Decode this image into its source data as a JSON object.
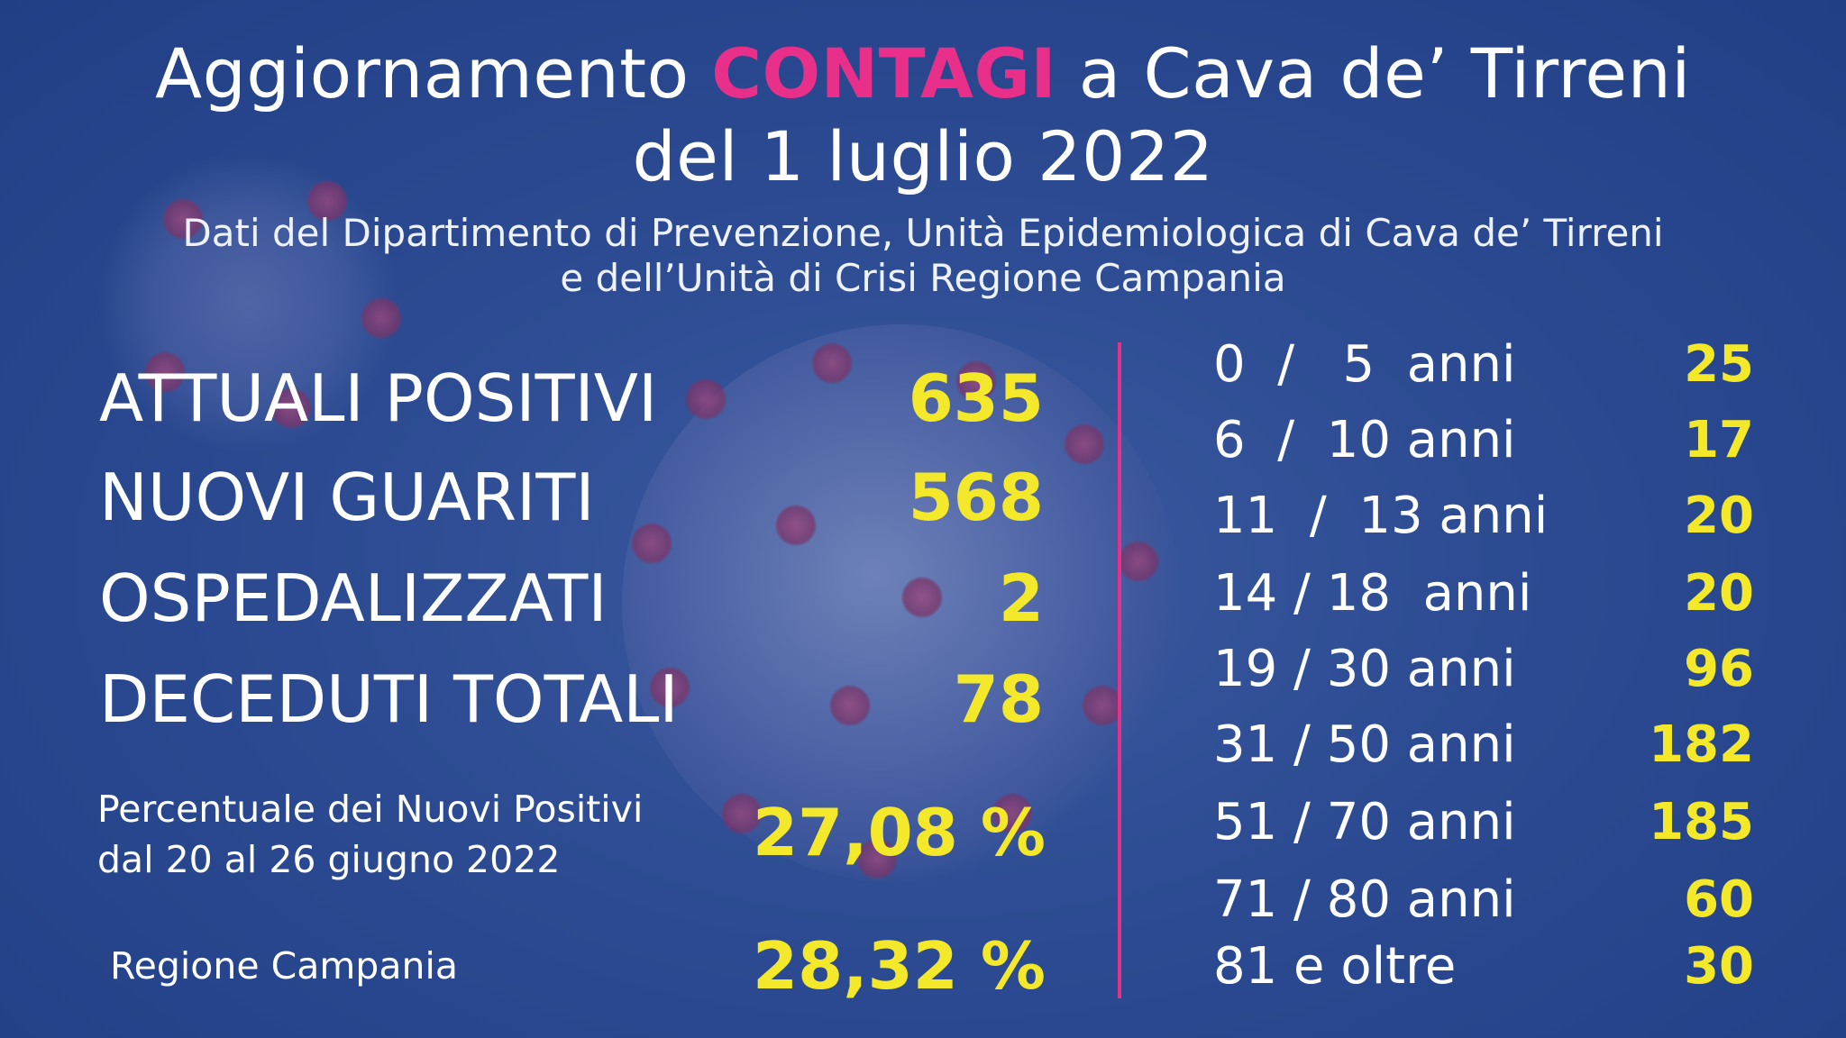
{
  "header": {
    "title_prefix": "Aggiornamento ",
    "title_accent": "CONTAGI",
    "title_suffix": " a Cava de’ Tirreni",
    "title_line2": "del 1 luglio 2022",
    "subtitle_line1": "Dati del Dipartimento di Prevenzione, Unità Epidemiologica di Cava de’ Tirreni",
    "subtitle_line2": "e dell’Unità di Crisi Regione Campania"
  },
  "stats": [
    {
      "label": "ATTUALI POSITIVI",
      "value": "635"
    },
    {
      "label": "NUOVI GUARITI",
      "value": "568"
    },
    {
      "label": "OSPEDALIZZATI",
      "value": "2"
    },
    {
      "label": "DECEDUTI TOTALI",
      "value": "78"
    }
  ],
  "percent": {
    "label_line1": "Percentuale dei Nuovi Positivi",
    "label_line2": "dal 20 al 26 giugno 2022",
    "value": "27,08 %",
    "region_label": "Regione Campania",
    "region_value": "28,32 %"
  },
  "ages": [
    {
      "range": "0  /   5  anni",
      "value": "25"
    },
    {
      "range": "6  /  10 anni",
      "value": "17"
    },
    {
      "range": "11  /  13 anni",
      "value": "20"
    },
    {
      "range": "14 / 18  anni",
      "value": "20"
    },
    {
      "range": "19 / 30 anni",
      "value": "96"
    },
    {
      "range": "31 / 50 anni",
      "value": "182"
    },
    {
      "range": "51 / 70 anni",
      "value": "185"
    },
    {
      "range": "71 / 80 anni",
      "value": "60"
    },
    {
      "range": "81 e oltre",
      "value": "30"
    }
  ],
  "colors": {
    "background": "#2c4b92",
    "accent_pink": "#e8308a",
    "value_yellow": "#f4e82a",
    "text_white": "#ffffff"
  }
}
